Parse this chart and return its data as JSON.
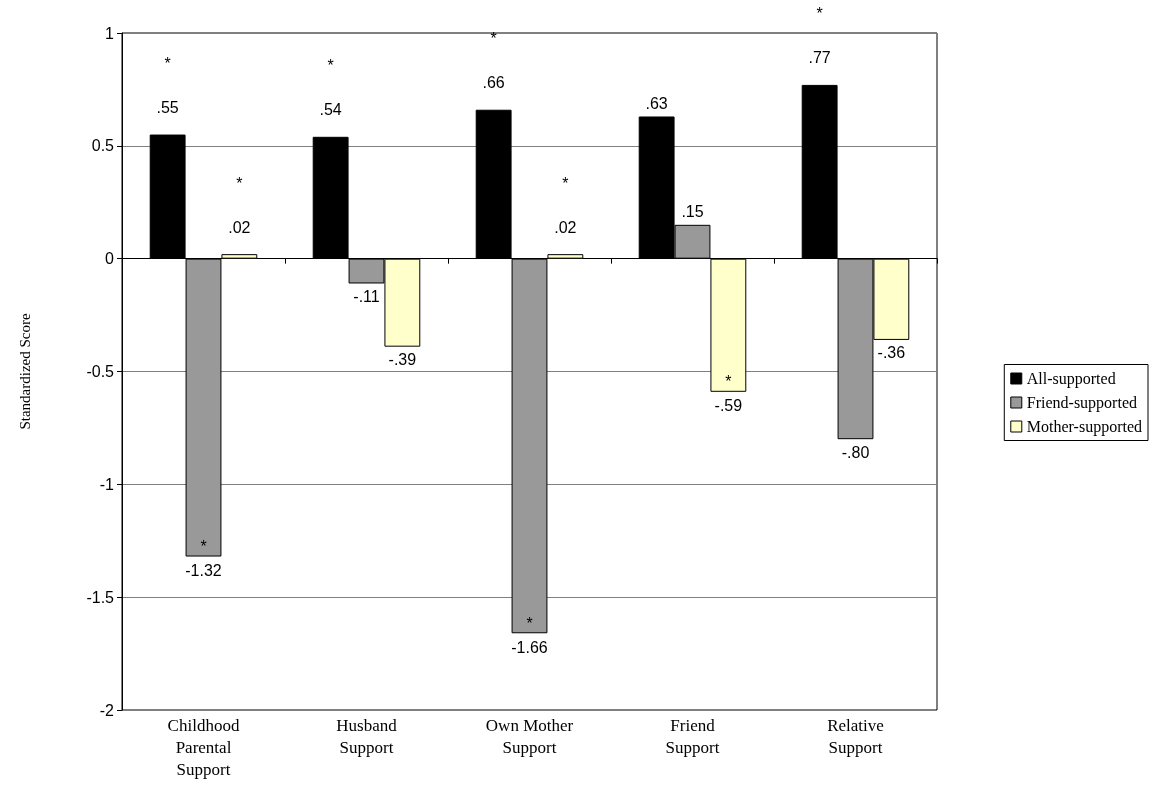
{
  "chart_data": {
    "type": "bar",
    "ylabel": "Standardized Score",
    "categories": [
      "Childhood\nParental\nSupport",
      "Husband\nSupport",
      "Own Mother\nSupport",
      "Friend\nSupport",
      "Relative\nSupport"
    ],
    "series": [
      {
        "name": "All-supported",
        "color": "#000000",
        "values": [
          0.55,
          0.54,
          0.66,
          0.63,
          0.77
        ],
        "value_labels": [
          "*\n.55",
          "*\n.54",
          "*\n.66",
          ".63",
          "*\n.77"
        ]
      },
      {
        "name": "Friend-supported",
        "color": "#999999",
        "values": [
          -1.32,
          -0.11,
          -1.66,
          0.15,
          -0.8
        ],
        "value_labels": [
          "*\n-1.32",
          "-.11",
          "*\n-1.66",
          ".15",
          "-.80"
        ]
      },
      {
        "name": "Mother-supported",
        "color": "#ffffcc",
        "values": [
          0.02,
          -0.39,
          0.02,
          -0.59,
          -0.36
        ],
        "value_labels": [
          "*\n.02",
          "-.39",
          "*\n.02",
          "*\n-.59",
          "-.36"
        ]
      }
    ],
    "ylim": [
      -2,
      1
    ],
    "yticks": [
      -2,
      -1.5,
      -1,
      -0.5,
      0,
      0.5,
      1
    ],
    "grid": "y",
    "legend": "right"
  }
}
